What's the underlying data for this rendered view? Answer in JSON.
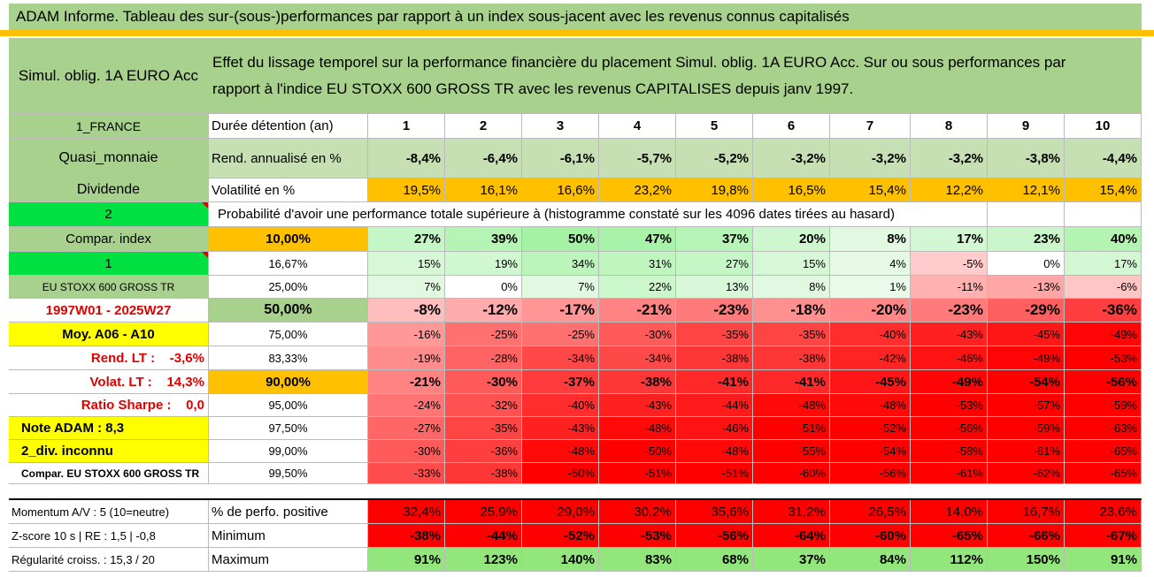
{
  "title": "ADAM Informe. Tableau des sur-(sous-)performances par rapport à un index sous-jacent avec les revenus connus capitalisés",
  "fund_name": "Simul. oblig. 1A EURO Acc",
  "description_line1": "Effet du lissage temporel sur la performance financière du placement Simul. oblig. 1A EURO Acc. Sur ou sous performances par",
  "description_line2": "rapport à l'indice EU STOXX 600 GROSS TR avec les revenus CAPITALISES depuis janv 1997.",
  "left": {
    "country": "1_FRANCE",
    "category": "Quasi_monnaie",
    "dividend": "Dividende",
    "num2": "2",
    "compar_index": "Compar. index",
    "num1": "1",
    "index_name": "EU STOXX 600 GROSS TR",
    "period": "1997W01 - 2025W27",
    "moy": "Moy. A06 - A10",
    "rend_lt": "Rend. LT :    -3,6%",
    "volat_lt": "Volat. LT :    14,3%",
    "sharpe": "Ratio Sharpe :    0,0",
    "note_adam": "Note ADAM : 8,3",
    "div_inconnu": "2_div. inconnu",
    "compar_full": "Compar. EU STOXX 600 GROSS TR"
  },
  "header": {
    "duree_label": "Durée détention (an)",
    "years": [
      "1",
      "2",
      "3",
      "4",
      "5",
      "6",
      "7",
      "8",
      "9",
      "10"
    ],
    "rend_label": "Rend. annualisé en %",
    "rend_values": [
      "-8,4%",
      "-6,4%",
      "-6,1%",
      "-5,7%",
      "-5,2%",
      "-3,2%",
      "-3,2%",
      "-3,2%",
      "-3,8%",
      "-4,4%"
    ],
    "vol_label": "Volatilité en %",
    "vol_values": [
      "19,5%",
      "16,1%",
      "16,6%",
      "23,2%",
      "19,8%",
      "16,5%",
      "15,4%",
      "12,2%",
      "12,1%",
      "15,4%"
    ],
    "prob_label": "Probabilité d'avoir une performance totale supérieure à (histogramme constaté sur les 4096 dates tirées au hasard)"
  },
  "prob_rows": [
    {
      "threshold": "10,00%",
      "values": [
        "27%",
        "39%",
        "50%",
        "47%",
        "37%",
        "20%",
        "8%",
        "17%",
        "23%",
        "40%"
      ]
    },
    {
      "threshold": "16,67%",
      "values": [
        "15%",
        "19%",
        "34%",
        "31%",
        "27%",
        "15%",
        "4%",
        "-5%",
        "0%",
        "17%"
      ]
    },
    {
      "threshold": "25,00%",
      "values": [
        "7%",
        "0%",
        "7%",
        "22%",
        "13%",
        "8%",
        "1%",
        "-11%",
        "-13%",
        "-6%"
      ]
    },
    {
      "threshold": "50,00%",
      "values": [
        "-8%",
        "-12%",
        "-17%",
        "-21%",
        "-23%",
        "-18%",
        "-20%",
        "-23%",
        "-29%",
        "-36%"
      ]
    },
    {
      "threshold": "75,00%",
      "values": [
        "-16%",
        "-25%",
        "-25%",
        "-30%",
        "-35%",
        "-35%",
        "-40%",
        "-43%",
        "-45%",
        "-49%"
      ]
    },
    {
      "threshold": "83,33%",
      "values": [
        "-19%",
        "-28%",
        "-34%",
        "-34%",
        "-38%",
        "-38%",
        "-42%",
        "-46%",
        "-49%",
        "-53%"
      ]
    },
    {
      "threshold": "90,00%",
      "values": [
        "-21%",
        "-30%",
        "-37%",
        "-38%",
        "-41%",
        "-41%",
        "-45%",
        "-49%",
        "-54%",
        "-56%"
      ]
    },
    {
      "threshold": "95,00%",
      "values": [
        "-24%",
        "-32%",
        "-40%",
        "-43%",
        "-44%",
        "-48%",
        "-48%",
        "-53%",
        "-57%",
        "-59%"
      ]
    },
    {
      "threshold": "97,50%",
      "values": [
        "-27%",
        "-35%",
        "-43%",
        "-48%",
        "-46%",
        "-51%",
        "-52%",
        "-56%",
        "-59%",
        "-63%"
      ]
    },
    {
      "threshold": "99,00%",
      "values": [
        "-30%",
        "-36%",
        "-48%",
        "-50%",
        "-48%",
        "-55%",
        "-54%",
        "-58%",
        "-61%",
        "-65%"
      ]
    },
    {
      "threshold": "99,50%",
      "values": [
        "-33%",
        "-38%",
        "-50%",
        "-51%",
        "-51%",
        "-60%",
        "-56%",
        "-61%",
        "-62%",
        "-65%"
      ]
    }
  ],
  "bottom": {
    "momentum": "Momentum A/V : 5 (10=neutre)",
    "zscore": "Z-score 10 s | RE : 1,5 | -0,8",
    "regularite": "Régularité croiss. : 15,3 / 20",
    "pos_label": "% de perfo. positive",
    "pos_values": [
      "32,4%",
      "25,9%",
      "29,0%",
      "30,2%",
      "35,6%",
      "31,2%",
      "26,5%",
      "14,0%",
      "16,7%",
      "23,6%"
    ],
    "min_label": "Minimum",
    "min_values": [
      "-38%",
      "-44%",
      "-52%",
      "-53%",
      "-56%",
      "-64%",
      "-60%",
      "-65%",
      "-66%",
      "-67%"
    ],
    "max_label": "Maximum",
    "max_values": [
      "91%",
      "123%",
      "140%",
      "83%",
      "68%",
      "37%",
      "84%",
      "112%",
      "150%",
      "91%"
    ]
  }
}
